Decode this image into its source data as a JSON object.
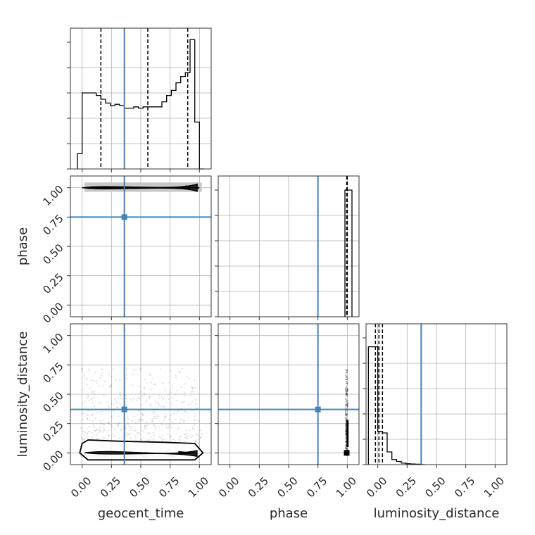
{
  "chart_data": {
    "type": "corner",
    "parameters": [
      "geocent_time",
      "phase",
      "luminosity_distance"
    ],
    "tick_values": [
      0.0,
      0.25,
      0.5,
      0.75,
      1.0
    ],
    "tick_labels": [
      "0.00",
      "0.25",
      "0.50",
      "0.75",
      "1.00"
    ],
    "axis_range": [
      -0.1,
      1.1
    ],
    "truth_color": "#4682b4",
    "grid": true,
    "truths": {
      "geocent_time": 0.36,
      "phase": 0.75,
      "luminosity_distance": 0.37
    },
    "quantiles": {
      "geocent_time": [
        0.16,
        0.56,
        0.9
      ],
      "phase": [
        0.995,
        0.998,
        1.0
      ],
      "luminosity_distance": [
        -0.02,
        0.01,
        0.04
      ]
    },
    "histograms": {
      "geocent_time": {
        "bin_edges": [
          -0.04,
          0.0,
          0.04,
          0.08,
          0.12,
          0.16,
          0.2,
          0.24,
          0.28,
          0.32,
          0.36,
          0.4,
          0.44,
          0.48,
          0.52,
          0.56,
          0.6,
          0.64,
          0.68,
          0.72,
          0.76,
          0.8,
          0.84,
          0.88,
          0.92,
          0.96,
          1.0,
          1.04
        ],
        "counts": [
          0.12,
          0.6,
          0.6,
          0.6,
          0.58,
          0.55,
          0.52,
          0.5,
          0.51,
          0.5,
          0.48,
          0.48,
          0.49,
          0.48,
          0.49,
          0.49,
          0.49,
          0.49,
          0.53,
          0.58,
          0.62,
          0.68,
          0.73,
          0.76,
          1.02,
          0.37,
          0.0
        ]
      },
      "phase": {
        "bin_edges": [
          0.98,
          1.0,
          1.04
        ],
        "counts": [
          1.0,
          1.0
        ]
      },
      "luminosity_distance": {
        "bin_edges": [
          -0.08,
          -0.04,
          0.0,
          0.04,
          0.08,
          0.12,
          0.16,
          0.2,
          0.24,
          0.28,
          0.32,
          0.36,
          0.4
        ],
        "counts": [
          0.93,
          0.93,
          0.26,
          0.25,
          0.1,
          0.04,
          0.025,
          0.012,
          0.007,
          0.005,
          0.003,
          0.0
        ]
      }
    }
  }
}
